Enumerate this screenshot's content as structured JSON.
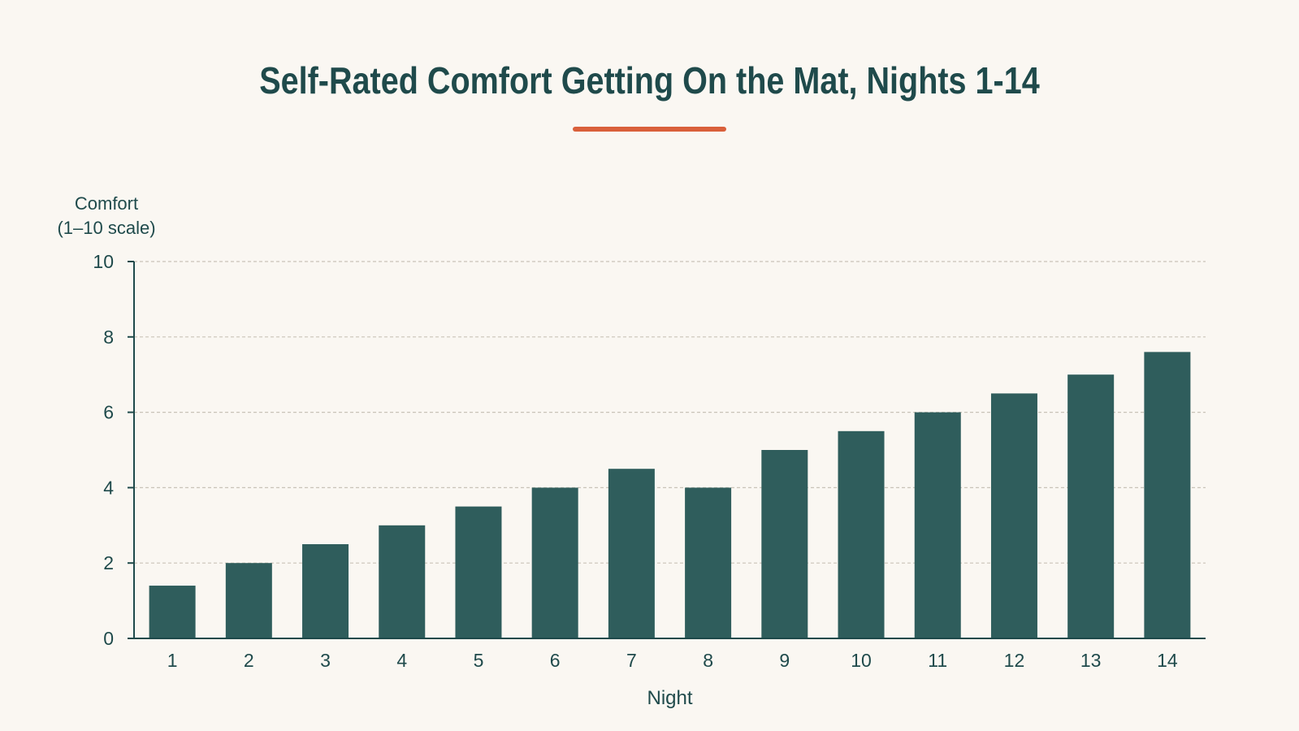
{
  "chart_data": {
    "type": "bar",
    "title": "Self-Rated Comfort Getting On the Mat, Nights 1-14",
    "xlabel": "Night",
    "ylabel_line1": "Comfort",
    "ylabel_line2": "(1–10 scale)",
    "categories": [
      "1",
      "2",
      "3",
      "4",
      "5",
      "6",
      "7",
      "8",
      "9",
      "10",
      "11",
      "12",
      "13",
      "14"
    ],
    "values": [
      1.4,
      2.0,
      2.5,
      3.0,
      3.5,
      4.0,
      4.5,
      4.0,
      5.0,
      5.5,
      6.0,
      6.5,
      7.0,
      7.6
    ],
    "ylim": [
      0,
      10
    ],
    "yticks": [
      0,
      2,
      4,
      6,
      8,
      10
    ],
    "grid": true,
    "colors": {
      "bar": "#2f5d5c",
      "accent": "#d9603b",
      "text": "#1f4a4b",
      "axis": "#1f4a4b",
      "grid": "#c9c3b8",
      "background": "#faf7f2"
    }
  }
}
